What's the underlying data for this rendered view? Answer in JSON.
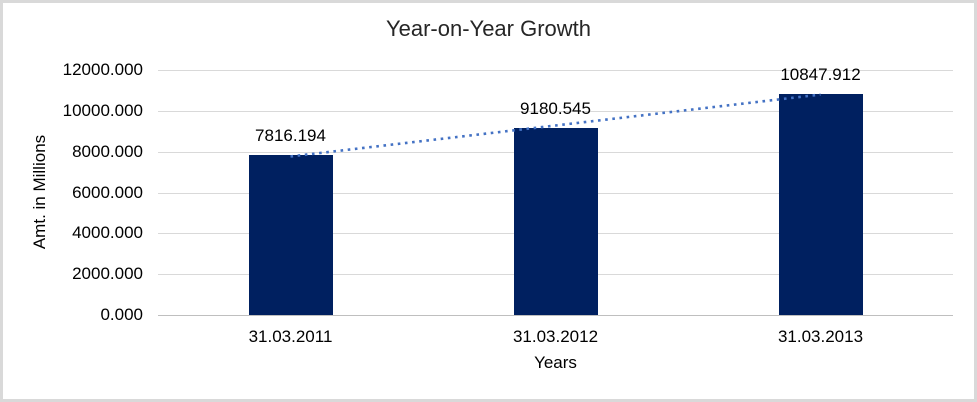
{
  "chart": {
    "title": "Year-on-Year Growth",
    "y_axis_title": "Amt. in Millions",
    "x_axis_title": "Years",
    "colors": {
      "bar": "#002060",
      "trendline": "#4472C4",
      "gridline": "#D9D9D9",
      "axis_line": "#BFBFBF",
      "border": "#D9D9D9",
      "label_text": "#000000",
      "title_text": "#262626"
    }
  },
  "chart_data": {
    "type": "bar",
    "title": "Year-on-Year Growth",
    "xlabel": "Years",
    "ylabel": "Amt. in Millions",
    "categories": [
      "31.03.2011",
      "31.03.2012",
      "31.03.2013"
    ],
    "values": [
      7816.194,
      9180.545,
      10847.912
    ],
    "data_labels": [
      "7816.194",
      "9180.545",
      "10847.912"
    ],
    "y_ticks": [
      {
        "label": "12000.000",
        "value": 12000
      },
      {
        "label": "10000.000",
        "value": 10000
      },
      {
        "label": "8000.000",
        "value": 8000
      },
      {
        "label": "6000.000",
        "value": 6000
      },
      {
        "label": "4000.000",
        "value": 4000
      },
      {
        "label": "2000.000",
        "value": 2000
      },
      {
        "label": "0.000",
        "value": 0
      }
    ],
    "ylim": [
      0,
      12000
    ],
    "grid": true,
    "legend_position": "none",
    "trendline": {
      "type": "linear",
      "style": "dotted"
    }
  }
}
